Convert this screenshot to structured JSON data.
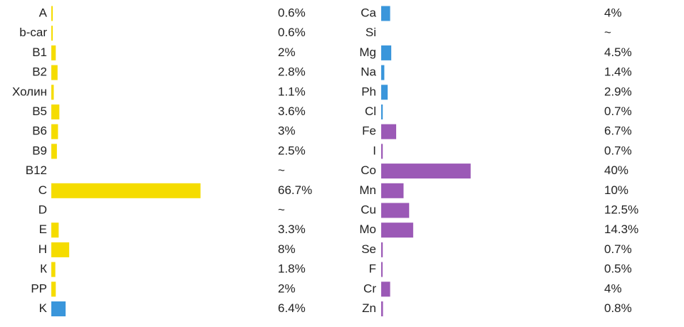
{
  "columns": [
    {
      "labels": [
        "A",
        "b-car",
        "B1",
        "B2",
        "Холин",
        "B5",
        "B6",
        "B9",
        "B12",
        "C",
        "D",
        "E",
        "H",
        "К",
        "PP",
        "K"
      ],
      "values": [
        0.6,
        0.6,
        2,
        2.8,
        1.1,
        3.6,
        3,
        2.5,
        null,
        66.7,
        null,
        3.3,
        8,
        1.8,
        2,
        6.4
      ],
      "value_labels": [
        "0.6%",
        "0.6%",
        "2%",
        "2.8%",
        "1.1%",
        "3.6%",
        "3%",
        "2.5%",
        "~",
        "66.7%",
        "~",
        "3.3%",
        "8%",
        "1.8%",
        "2%",
        "6.4%"
      ],
      "colors": [
        "#f5dc00",
        "#f5dc00",
        "#f5dc00",
        "#f5dc00",
        "#f5dc00",
        "#f5dc00",
        "#f5dc00",
        "#f5dc00",
        "#f5dc00",
        "#f5dc00",
        "#f5dc00",
        "#f5dc00",
        "#f5dc00",
        "#f5dc00",
        "#f5dc00",
        "#3a96db"
      ]
    },
    {
      "labels": [
        "Ca",
        "Si",
        "Mg",
        "Na",
        "Ph",
        "Cl",
        "Fe",
        "I",
        "Co",
        "Mn",
        "Cu",
        "Mo",
        "Se",
        "F",
        "Cr",
        "Zn"
      ],
      "values": [
        4,
        null,
        4.5,
        1.4,
        2.9,
        0.7,
        6.7,
        0.7,
        40,
        10,
        12.5,
        14.3,
        0.7,
        0.5,
        4,
        0.8
      ],
      "value_labels": [
        "4%",
        "~",
        "4.5%",
        "1.4%",
        "2.9%",
        "0.7%",
        "6.7%",
        "0.7%",
        "40%",
        "10%",
        "12.5%",
        "14.3%",
        "0.7%",
        "0.5%",
        "4%",
        "0.8%"
      ],
      "colors": [
        "#3a96db",
        "#3a96db",
        "#3a96db",
        "#3a96db",
        "#3a96db",
        "#3a96db",
        "#9b59b6",
        "#9b59b6",
        "#9b59b6",
        "#9b59b6",
        "#9b59b6",
        "#9b59b6",
        "#9b59b6",
        "#9b59b6",
        "#9b59b6",
        "#9b59b6"
      ]
    }
  ]
}
